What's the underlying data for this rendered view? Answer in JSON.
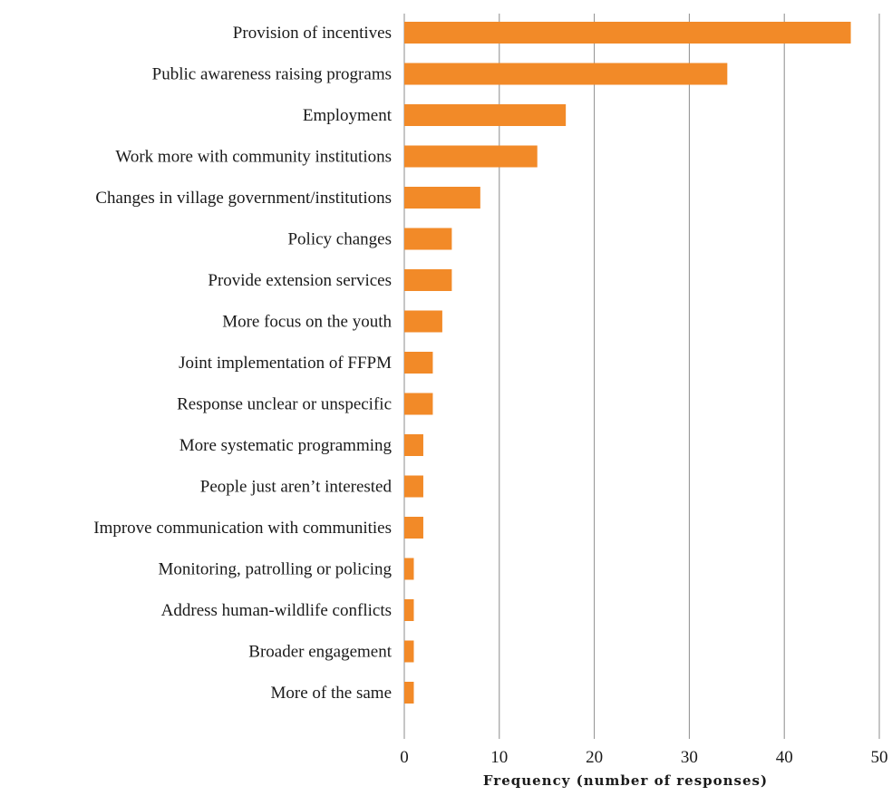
{
  "chart_data": {
    "type": "bar",
    "orientation": "horizontal",
    "categories": [
      "Provision of incentives",
      "Public awareness raising programs",
      "Employment",
      "Work more with community institutions",
      "Changes in village government/institutions",
      "Policy changes",
      "Provide extension services",
      "More focus on the youth",
      "Joint implementation of FFPM",
      "Response unclear or unspecific",
      "More systematic programming",
      "People just aren’t interested",
      "Improve communication with communities",
      "Monitoring, patrolling or policing",
      "Address human-wildlife conflicts",
      "Broader engagement",
      "More of the same"
    ],
    "values": [
      47,
      34,
      17,
      14,
      8,
      5,
      5,
      4,
      3,
      3,
      2,
      2,
      2,
      1,
      1,
      1,
      1
    ],
    "xlabel": "Frequency (number of responses)",
    "xlim": [
      0,
      50
    ],
    "xticks": [
      "0",
      "10",
      "20",
      "30",
      "40",
      "50"
    ],
    "grid": "vertical",
    "bar_color": "#f28a28",
    "grid_color": "#8c8c8c"
  }
}
